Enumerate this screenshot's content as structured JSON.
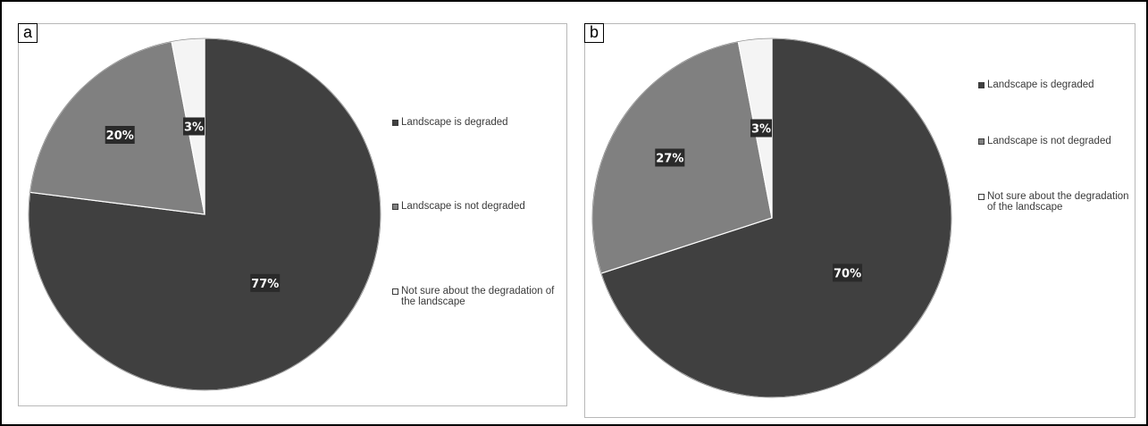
{
  "panels": [
    {
      "letter": "a"
    },
    {
      "letter": "b"
    }
  ],
  "legend_colors": {
    "degraded": "#404040",
    "not_degraded": "#808080",
    "not_sure": "#f4f4f4"
  },
  "chart_data": [
    {
      "type": "pie",
      "categories": [
        "Landscape is degraded",
        "Landscape is not degraded",
        "Not sure about the degradation of the landscape"
      ],
      "values": [
        77,
        20,
        3
      ],
      "labels": [
        "77%",
        "20%",
        "3%"
      ],
      "colors": [
        "#404040",
        "#808080",
        "#f4f4f4"
      ],
      "legend_position": "right",
      "legend": [
        "Landscape is degraded",
        "Landscape is not degraded",
        "Not sure about the degradation of the landscape"
      ]
    },
    {
      "type": "pie",
      "categories": [
        "Landscape is degraded",
        "Landscape is not degraded",
        "Not sure about the degradation of the landscape"
      ],
      "values": [
        70,
        27,
        3
      ],
      "labels": [
        "70%",
        "27%",
        "3%"
      ],
      "colors": [
        "#404040",
        "#808080",
        "#f4f4f4"
      ],
      "legend_position": "right",
      "legend": [
        "Landscape is degraded",
        "Landscape is not degraded",
        "Not sure about the degradation of the landscape"
      ]
    }
  ]
}
